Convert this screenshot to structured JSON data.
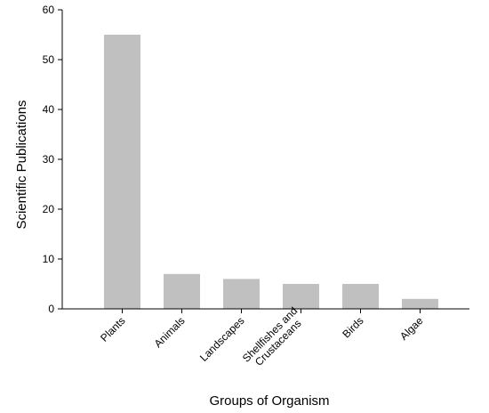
{
  "chart_data": {
    "type": "bar",
    "categories": [
      "Plants",
      "Animals",
      "Landscapes",
      "Shellfishes and Crustaceans",
      "Birds",
      "Algae"
    ],
    "category_label_lines": [
      [
        "Plants"
      ],
      [
        "Animals"
      ],
      [
        "Landscapes"
      ],
      [
        "Shellfishes and",
        "Crustaceans"
      ],
      [
        "Birds"
      ],
      [
        "Algae"
      ]
    ],
    "values": [
      55,
      7,
      6,
      5,
      5,
      2
    ],
    "xlabel": "Groups of Organism",
    "ylabel": "Scientific Publications",
    "ylim": [
      0,
      60
    ],
    "yticks": [
      0,
      10,
      20,
      30,
      40,
      50,
      60
    ],
    "grid": false,
    "legend": "none",
    "bar_color": "#c0c0c0",
    "axis_color": "#000000"
  }
}
